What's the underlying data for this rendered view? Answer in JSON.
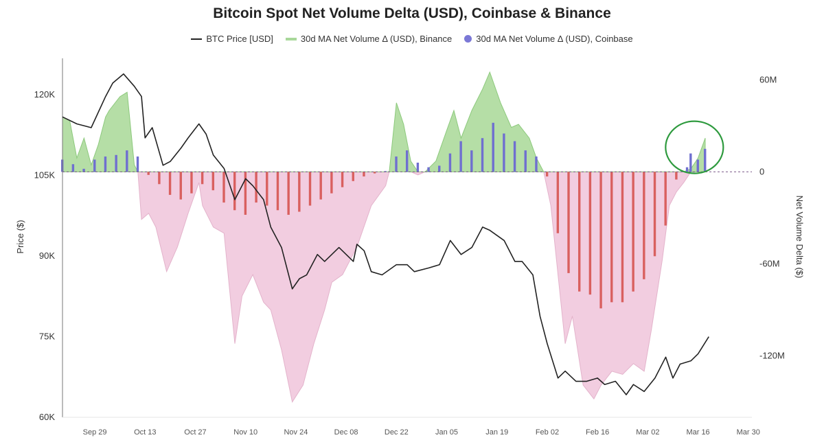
{
  "chart_data": {
    "type": "line",
    "title": "Bitcoin Spot Net Volume Delta (USD), Coinbase & Binance",
    "ylabel": "Price ($)",
    "y2label": "Net Volume Delta ($)",
    "xlim": [
      "2025-09-20",
      "2026-03-31"
    ],
    "ylim": [
      60000,
      126800
    ],
    "y2lim": [
      -160,
      74
    ],
    "y2_unit": "M USD",
    "x_ticks": [
      {
        "date": "2025-09-29",
        "label": "Sep 29"
      },
      {
        "date": "2025-10-13",
        "label": "Oct 13"
      },
      {
        "date": "2025-10-27",
        "label": "Oct 27"
      },
      {
        "date": "2025-11-10",
        "label": "Nov 10"
      },
      {
        "date": "2025-11-24",
        "label": "Nov 24"
      },
      {
        "date": "2025-12-08",
        "label": "Dec 08"
      },
      {
        "date": "2025-12-22",
        "label": "Dec 22"
      },
      {
        "date": "2026-01-05",
        "label": "Jan 05"
      },
      {
        "date": "2026-01-19",
        "label": "Jan 19"
      },
      {
        "date": "2026-02-02",
        "label": "Feb 02"
      },
      {
        "date": "2026-02-16",
        "label": "Feb 16"
      },
      {
        "date": "2026-03-02",
        "label": "Mar 02"
      },
      {
        "date": "2026-03-16",
        "label": "Mar 16"
      },
      {
        "date": "2026-03-30",
        "label": "Mar 30"
      }
    ],
    "y_ticks": [
      {
        "value": 60000,
        "label": "60K"
      },
      {
        "value": 75000,
        "label": "75K"
      },
      {
        "value": 90000,
        "label": "90K"
      },
      {
        "value": 105000,
        "label": "105K"
      },
      {
        "value": 120000,
        "label": "120K"
      }
    ],
    "y2_ticks": [
      {
        "value": 60,
        "label": "60M"
      },
      {
        "value": 0,
        "label": "0"
      },
      {
        "value": -60,
        "label": "-60M"
      },
      {
        "value": -120,
        "label": "-120M"
      }
    ],
    "grid": false,
    "legend_placement": "top-center",
    "colors": {
      "price": "#222222",
      "binance_pos": "#b5dea6",
      "binance_pos_line": "#8cc97c",
      "binance_neg": "#f2cde0",
      "binance_neg_line": "#e3b3cb",
      "coinbase_pos": "#6f6fd0",
      "coinbase_neg": "#d9605f",
      "annotation": "#2e9a3e",
      "zero_line": "#7a5a8a"
    },
    "annotation": {
      "shape": "circle",
      "around": "Coinbase positive bars, Mar 12 – Mar 19"
    },
    "series": [
      {
        "name": "BTC Price [USD]",
        "axis": "left",
        "type": "line",
        "points": [
          [
            "2025-09-20",
            115900
          ],
          [
            "2025-09-24",
            114600
          ],
          [
            "2025-09-28",
            113900
          ],
          [
            "2025-10-02",
            119700
          ],
          [
            "2025-10-04",
            122200
          ],
          [
            "2025-10-07",
            123900
          ],
          [
            "2025-10-10",
            121600
          ],
          [
            "2025-10-12",
            119700
          ],
          [
            "2025-10-13",
            112000
          ],
          [
            "2025-10-15",
            113900
          ],
          [
            "2025-10-18",
            106900
          ],
          [
            "2025-10-20",
            107600
          ],
          [
            "2025-10-23",
            110100
          ],
          [
            "2025-10-25",
            112000
          ],
          [
            "2025-10-28",
            114600
          ],
          [
            "2025-10-30",
            112700
          ],
          [
            "2025-11-01",
            108800
          ],
          [
            "2025-11-04",
            106300
          ],
          [
            "2025-11-07",
            100500
          ],
          [
            "2025-11-10",
            104400
          ],
          [
            "2025-11-12",
            103100
          ],
          [
            "2025-11-15",
            100500
          ],
          [
            "2025-11-17",
            95400
          ],
          [
            "2025-11-20",
            91600
          ],
          [
            "2025-11-23",
            83900
          ],
          [
            "2025-11-25",
            85800
          ],
          [
            "2025-11-27",
            86500
          ],
          [
            "2025-11-30",
            90300
          ],
          [
            "2025-12-02",
            89000
          ],
          [
            "2025-12-06",
            91600
          ],
          [
            "2025-12-10",
            89000
          ],
          [
            "2025-12-11",
            92200
          ],
          [
            "2025-12-13",
            91000
          ],
          [
            "2025-12-15",
            87100
          ],
          [
            "2025-12-18",
            86500
          ],
          [
            "2025-12-22",
            88400
          ],
          [
            "2025-12-25",
            88400
          ],
          [
            "2025-12-27",
            87100
          ],
          [
            "2025-12-31",
            87800
          ],
          [
            "2026-01-03",
            88400
          ],
          [
            "2026-01-06",
            92900
          ],
          [
            "2026-01-09",
            90300
          ],
          [
            "2026-01-12",
            91600
          ],
          [
            "2026-01-15",
            95400
          ],
          [
            "2026-01-17",
            94800
          ],
          [
            "2026-01-21",
            92900
          ],
          [
            "2026-01-24",
            89000
          ],
          [
            "2026-01-26",
            89000
          ],
          [
            "2026-01-29",
            86500
          ],
          [
            "2026-01-31",
            78800
          ],
          [
            "2026-02-02",
            73700
          ],
          [
            "2026-02-05",
            67300
          ],
          [
            "2026-02-07",
            68600
          ],
          [
            "2026-02-10",
            66700
          ],
          [
            "2026-02-13",
            66700
          ],
          [
            "2026-02-16",
            67300
          ],
          [
            "2026-02-18",
            66100
          ],
          [
            "2026-02-21",
            66700
          ],
          [
            "2026-02-24",
            64200
          ],
          [
            "2026-02-26",
            66100
          ],
          [
            "2026-03-01",
            64800
          ],
          [
            "2026-03-04",
            67300
          ],
          [
            "2026-03-07",
            71200
          ],
          [
            "2026-03-09",
            67300
          ],
          [
            "2026-03-11",
            69900
          ],
          [
            "2026-03-14",
            70500
          ],
          [
            "2026-03-16",
            71800
          ],
          [
            "2026-03-19",
            75000
          ]
        ]
      },
      {
        "name": "30d MA Net Volume Δ (USD), Binance",
        "axis": "right",
        "type": "area",
        "points": [
          [
            "2025-09-20",
            35.8
          ],
          [
            "2025-09-22",
            33.6
          ],
          [
            "2025-09-24",
            9
          ],
          [
            "2025-09-26",
            22
          ],
          [
            "2025-09-28",
            4.5
          ],
          [
            "2025-09-30",
            17.9
          ],
          [
            "2025-10-02",
            35.8
          ],
          [
            "2025-10-03",
            40
          ],
          [
            "2025-10-06",
            49
          ],
          [
            "2025-10-08",
            51.9
          ],
          [
            "2025-10-10",
            4.5
          ],
          [
            "2025-10-11",
            0
          ],
          [
            "2025-10-12",
            -31
          ],
          [
            "2025-10-14",
            -27
          ],
          [
            "2025-10-16",
            -36
          ],
          [
            "2025-10-19",
            -65
          ],
          [
            "2025-10-22",
            -49
          ],
          [
            "2025-10-25",
            -27
          ],
          [
            "2025-10-28",
            -7
          ],
          [
            "2025-10-29",
            -22
          ],
          [
            "2025-11-01",
            -36
          ],
          [
            "2025-11-04",
            -40
          ],
          [
            "2025-11-07",
            -112
          ],
          [
            "2025-11-09",
            -81
          ],
          [
            "2025-11-12",
            -67
          ],
          [
            "2025-11-15",
            -85
          ],
          [
            "2025-11-17",
            -90
          ],
          [
            "2025-11-20",
            -116
          ],
          [
            "2025-11-23",
            -150
          ],
          [
            "2025-11-26",
            -139
          ],
          [
            "2025-11-29",
            -112
          ],
          [
            "2025-12-02",
            -90
          ],
          [
            "2025-12-04",
            -72
          ],
          [
            "2025-12-07",
            -67
          ],
          [
            "2025-12-11",
            -49
          ],
          [
            "2025-12-15",
            -22
          ],
          [
            "2025-12-19",
            -9
          ],
          [
            "2025-12-20",
            0
          ],
          [
            "2025-12-22",
            45
          ],
          [
            "2025-12-24",
            31
          ],
          [
            "2025-12-26",
            7
          ],
          [
            "2025-12-28",
            -2
          ],
          [
            "2025-12-30",
            0
          ],
          [
            "2026-01-02",
            7
          ],
          [
            "2026-01-05",
            27
          ],
          [
            "2026-01-07",
            40
          ],
          [
            "2026-01-09",
            22
          ],
          [
            "2026-01-12",
            40
          ],
          [
            "2026-01-15",
            54
          ],
          [
            "2026-01-17",
            65
          ],
          [
            "2026-01-20",
            45
          ],
          [
            "2026-01-23",
            29
          ],
          [
            "2026-01-25",
            31
          ],
          [
            "2026-01-28",
            22
          ],
          [
            "2026-01-30",
            9
          ],
          [
            "2026-02-01",
            0
          ],
          [
            "2026-02-03",
            -22
          ],
          [
            "2026-02-05",
            -67
          ],
          [
            "2026-02-07",
            -112
          ],
          [
            "2026-02-09",
            -94
          ],
          [
            "2026-02-12",
            -139
          ],
          [
            "2026-02-15",
            -148
          ],
          [
            "2026-02-17",
            -139
          ],
          [
            "2026-02-20",
            -130
          ],
          [
            "2026-02-23",
            -132
          ],
          [
            "2026-02-26",
            -125
          ],
          [
            "2026-03-01",
            -130
          ],
          [
            "2026-03-03",
            -103
          ],
          [
            "2026-03-06",
            -58
          ],
          [
            "2026-03-08",
            -22
          ],
          [
            "2026-03-10",
            -13
          ],
          [
            "2026-03-12",
            -7
          ],
          [
            "2026-03-14",
            2
          ],
          [
            "2026-03-16",
            9
          ],
          [
            "2026-03-18",
            22
          ]
        ]
      },
      {
        "name": "30d MA Net Volume Δ (USD), Coinbase",
        "axis": "right",
        "type": "bar",
        "points": [
          [
            "2025-09-20",
            8
          ],
          [
            "2025-09-23",
            5
          ],
          [
            "2025-09-26",
            2
          ],
          [
            "2025-09-29",
            8
          ],
          [
            "2025-10-02",
            10
          ],
          [
            "2025-10-05",
            11
          ],
          [
            "2025-10-08",
            14
          ],
          [
            "2025-10-11",
            10
          ],
          [
            "2025-10-14",
            -2
          ],
          [
            "2025-10-17",
            -8
          ],
          [
            "2025-10-20",
            -15
          ],
          [
            "2025-10-23",
            -18
          ],
          [
            "2025-10-26",
            -14
          ],
          [
            "2025-10-29",
            -8
          ],
          [
            "2025-11-01",
            -12
          ],
          [
            "2025-11-04",
            -20
          ],
          [
            "2025-11-07",
            -25
          ],
          [
            "2025-11-10",
            -28
          ],
          [
            "2025-11-13",
            -20
          ],
          [
            "2025-11-16",
            -22
          ],
          [
            "2025-11-19",
            -25
          ],
          [
            "2025-11-22",
            -28
          ],
          [
            "2025-11-25",
            -26
          ],
          [
            "2025-11-28",
            -22
          ],
          [
            "2025-12-01",
            -18
          ],
          [
            "2025-12-04",
            -14
          ],
          [
            "2025-12-07",
            -10
          ],
          [
            "2025-12-10",
            -6
          ],
          [
            "2025-12-13",
            -3
          ],
          [
            "2025-12-16",
            -1
          ],
          [
            "2025-12-19",
            0.5
          ],
          [
            "2025-12-22",
            10
          ],
          [
            "2025-12-25",
            14
          ],
          [
            "2025-12-28",
            6
          ],
          [
            "2025-12-31",
            3
          ],
          [
            "2026-01-03",
            4
          ],
          [
            "2026-01-06",
            12
          ],
          [
            "2026-01-09",
            20
          ],
          [
            "2026-01-12",
            14
          ],
          [
            "2026-01-15",
            22
          ],
          [
            "2026-01-18",
            32
          ],
          [
            "2026-01-21",
            25
          ],
          [
            "2026-01-24",
            20
          ],
          [
            "2026-01-27",
            14
          ],
          [
            "2026-01-30",
            10
          ],
          [
            "2026-02-02",
            -3
          ],
          [
            "2026-02-05",
            -40
          ],
          [
            "2026-02-08",
            -66
          ],
          [
            "2026-02-11",
            -78
          ],
          [
            "2026-02-14",
            -80
          ],
          [
            "2026-02-17",
            -89
          ],
          [
            "2026-02-20",
            -85
          ],
          [
            "2026-02-23",
            -85
          ],
          [
            "2026-02-26",
            -78
          ],
          [
            "2026-03-01",
            -70
          ],
          [
            "2026-03-04",
            -55
          ],
          [
            "2026-03-07",
            -35
          ],
          [
            "2026-03-10",
            -5
          ],
          [
            "2026-03-13",
            3
          ],
          [
            "2026-03-14",
            12
          ],
          [
            "2026-03-16",
            8
          ],
          [
            "2026-03-18",
            15
          ]
        ]
      }
    ]
  }
}
